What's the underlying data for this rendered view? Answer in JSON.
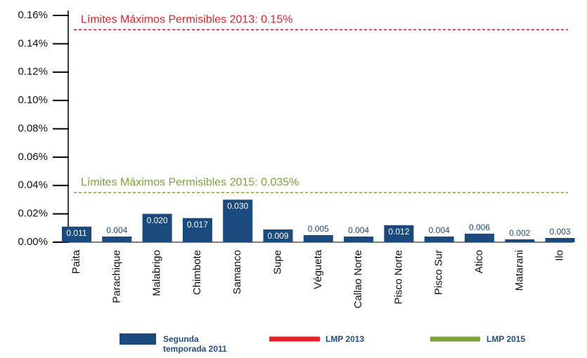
{
  "chart_data": {
    "type": "bar",
    "categories": [
      "Paita",
      "Parachique",
      "Malabrigo",
      "Chimbote",
      "Samanco",
      "Supe",
      "Végueta",
      "Callao Norte",
      "Pisco Norte",
      "Pisco Sur",
      "Atico",
      "Matarani",
      "Ilo"
    ],
    "series": [
      {
        "name": "Segunda temporada 2011",
        "color": "#1b4a7e",
        "values": [
          0.011,
          0.004,
          0.02,
          0.017,
          0.03,
          0.009,
          0.005,
          0.004,
          0.012,
          0.004,
          0.006,
          0.002,
          0.003
        ],
        "value_labels": [
          "0.011",
          "0.004",
          "0.020",
          "0.017",
          "0.030",
          "0.009",
          "0.005",
          "0.004",
          "0.012",
          "0.004",
          "0.006",
          "0.002",
          "0.003"
        ]
      }
    ],
    "reference_lines": [
      {
        "name": "LMP 2013",
        "color": "#e8202a",
        "value": 0.15,
        "label": "Límites Máximos Permisibles 2013:  0.15%"
      },
      {
        "name": "LMP 2015",
        "color": "#7aa33a",
        "value": 0.035,
        "label": "Límites Máximos Permisibles 2015: 0.035%"
      }
    ],
    "ylim": [
      0,
      0.16
    ],
    "yticks": [
      {
        "value": 0,
        "label": "0.00%"
      },
      {
        "value": 0.02,
        "label": "0.02%"
      },
      {
        "value": 0.04,
        "label": "0.04%"
      },
      {
        "value": 0.06,
        "label": "0.06%"
      },
      {
        "value": 0.08,
        "label": "0.08%"
      },
      {
        "value": 0.1,
        "label": "0.10%"
      },
      {
        "value": 0.12,
        "label": "0.12%"
      },
      {
        "value": 0.14,
        "label": "0.14%"
      },
      {
        "value": 0.16,
        "label": "0.16%"
      }
    ]
  }
}
